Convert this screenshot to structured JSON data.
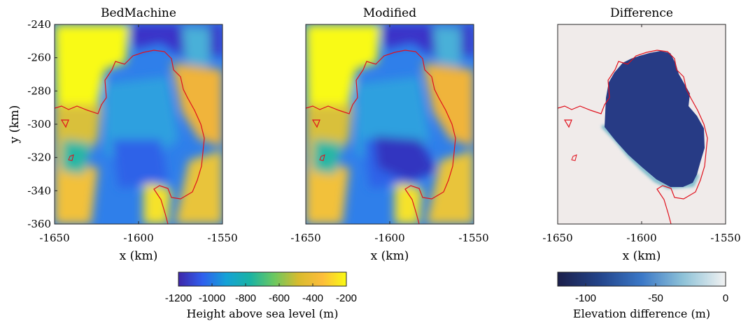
{
  "chart_data": [
    {
      "type": "heatmap",
      "title": "BedMachine",
      "xlabel": "x (km)",
      "ylabel": "y (km)",
      "xlim": [
        -1650,
        -1550
      ],
      "ylim": [
        -360,
        -240
      ],
      "xticks": [
        "-1650",
        "-1600",
        "-1550"
      ],
      "yticks": [
        "-240",
        "-260",
        "-280",
        "-300",
        "-320",
        "-340",
        "-360"
      ],
      "colormap": "parula",
      "color_range": [
        -1200,
        -200
      ],
      "overlay": "red grounding-line contour"
    },
    {
      "type": "heatmap",
      "title": "Modified",
      "xlabel": "x (km)",
      "xlim": [
        -1650,
        -1550
      ],
      "ylim": [
        -360,
        -240
      ],
      "xticks": [
        "-1650",
        "-1600",
        "-1550"
      ],
      "colormap": "parula",
      "color_range": [
        -1200,
        -200
      ],
      "overlay": "red grounding-line contour"
    },
    {
      "type": "heatmap",
      "title": "Difference",
      "xlabel": "x (km)",
      "xlim": [
        -1650,
        -1550
      ],
      "ylim": [
        -360,
        -240
      ],
      "xticks": [
        "-1650",
        "-1600",
        "-1550"
      ],
      "colormap": "ice",
      "color_range": [
        -120,
        0
      ],
      "region_value": -105,
      "background_value": 0,
      "overlay": "red grounding-line contour"
    }
  ],
  "colorbars": [
    {
      "label": "Height above sea level (m)",
      "ticks": [
        "-1200",
        "-1000",
        "-800",
        "-600",
        "-400",
        "-200"
      ],
      "tick_values": [
        -1200,
        -1000,
        -800,
        -600,
        -400,
        -200
      ],
      "range": [
        -1200,
        -200
      ],
      "colors": [
        "#3e26a8",
        "#2f5fee",
        "#14a2d6",
        "#1ab3a3",
        "#6cc860",
        "#d8bb2e",
        "#fdbd3a",
        "#f9fa14"
      ]
    },
    {
      "label": "Elevation difference (m)",
      "ticks": [
        "-100",
        "-50",
        "0"
      ],
      "tick_values": [
        -100,
        -50,
        0
      ],
      "range": [
        -120,
        0
      ],
      "colors": [
        "#1b1f4a",
        "#23448a",
        "#3b78c7",
        "#8fc3d8",
        "#f2f2f2"
      ]
    }
  ],
  "colors": {
    "contour": "#e0101c",
    "diff_background": "#f0ebea",
    "diff_region": "#273b85"
  }
}
